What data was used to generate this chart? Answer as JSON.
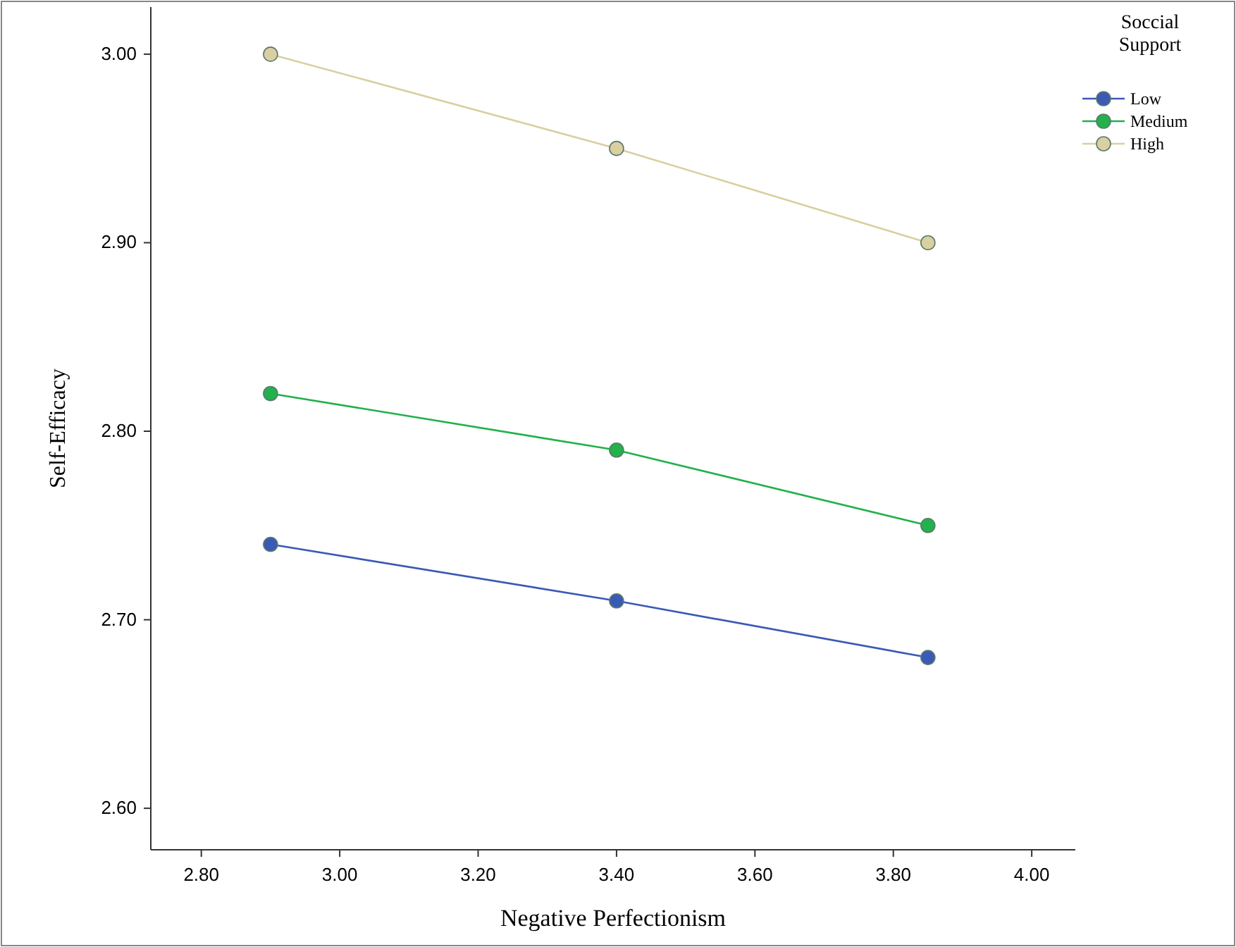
{
  "chart_data": {
    "type": "line",
    "xlabel": "Negative Perfectionism",
    "ylabel": "Self-Efficacy",
    "legend_title": "Soccial Support",
    "x": [
      2.9,
      3.4,
      3.85
    ],
    "series": [
      {
        "name": "Low",
        "color": "#3b5ab5",
        "values": [
          2.74,
          2.71,
          2.68
        ]
      },
      {
        "name": "Medium",
        "color": "#22b14c",
        "values": [
          2.82,
          2.79,
          2.75
        ]
      },
      {
        "name": "High",
        "color": "#d9cfa0",
        "values": [
          3.0,
          2.95,
          2.9
        ]
      }
    ],
    "xlim": [
      2.727,
      4.063
    ],
    "ylim": [
      2.578,
      3.025
    ],
    "xticks": [
      {
        "value": 2.8,
        "label": "2.80"
      },
      {
        "value": 3.0,
        "label": "3.00"
      },
      {
        "value": 3.2,
        "label": "3.20"
      },
      {
        "value": 3.4,
        "label": "3.40"
      },
      {
        "value": 3.6,
        "label": "3.60"
      },
      {
        "value": 3.8,
        "label": "3.80"
      },
      {
        "value": 4.0,
        "label": "4.00"
      }
    ],
    "yticks": [
      {
        "value": 2.6,
        "label": "2.60"
      },
      {
        "value": 2.7,
        "label": "2.70"
      },
      {
        "value": 2.8,
        "label": "2.80"
      },
      {
        "value": 2.9,
        "label": "2.90"
      },
      {
        "value": 3.0,
        "label": "3.00"
      }
    ],
    "grid": false,
    "legend": "top right",
    "marker": "circle",
    "line_style": "solid"
  }
}
